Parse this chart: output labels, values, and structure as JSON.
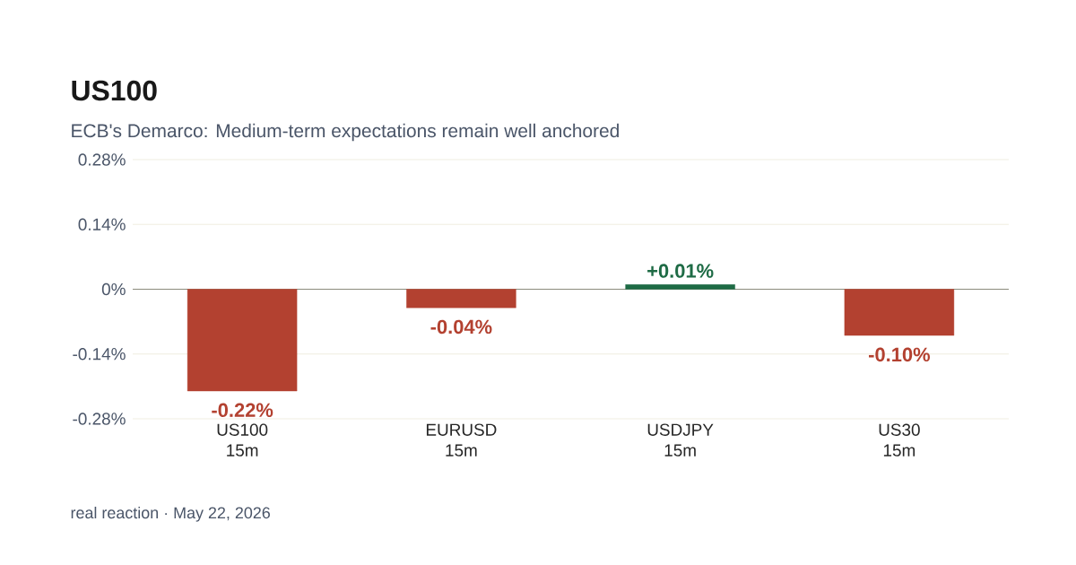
{
  "chart_data": {
    "type": "bar",
    "title": "US100",
    "subtitle": "ECB's Demarco: Medium-term expectations remain well anchored",
    "categories": [
      "US100 15m",
      "EURUSD 15m",
      "USDJPY 15m",
      "US30 15m"
    ],
    "values": [
      -0.22,
      -0.04,
      0.01,
      -0.1
    ],
    "colors": [
      "#b34130",
      "#b34130",
      "#1e6b45",
      "#b34130"
    ],
    "value_labels": [
      "-0.22%",
      "-0.04%",
      "+0.01%",
      "-0.10%"
    ],
    "ylim": [
      -0.28,
      0.28
    ],
    "yticks": [
      {
        "value": -0.28,
        "label": "-0.28%"
      },
      {
        "value": -0.14,
        "label": "-0.14%"
      },
      {
        "value": 0,
        "label": "0%"
      },
      {
        "value": 0.14,
        "label": "0.14%"
      },
      {
        "value": 0.28,
        "label": "0.28%"
      }
    ],
    "grid": "y",
    "annotations": [
      "real reaction · May 22, 2026"
    ]
  }
}
